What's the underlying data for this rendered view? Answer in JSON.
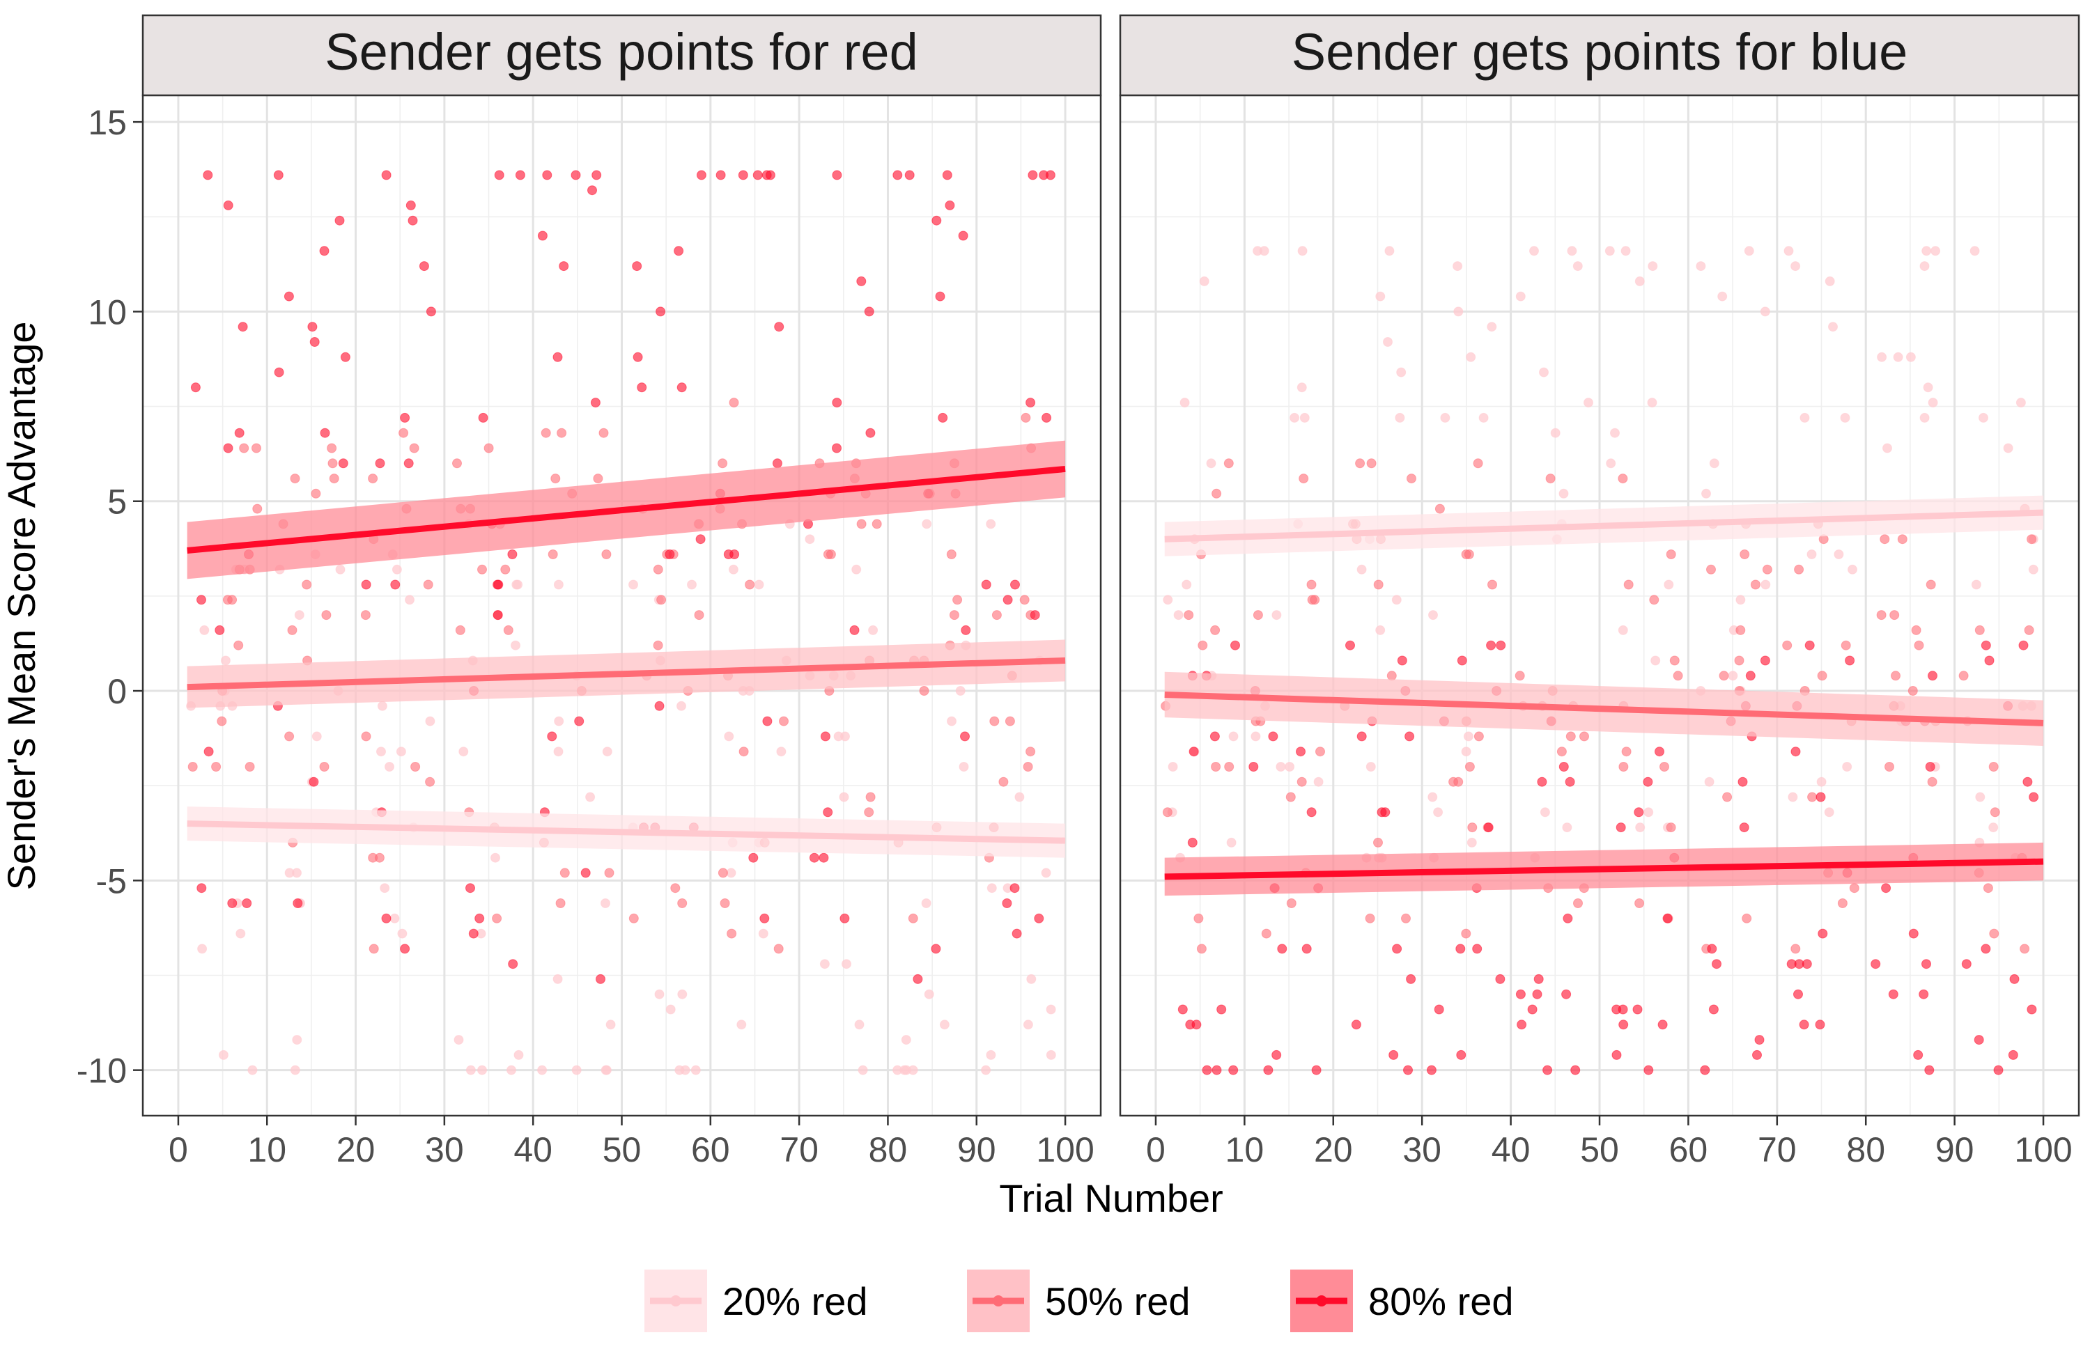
{
  "chart_data": {
    "type": "scatter",
    "xlabel": "Trial Number",
    "ylabel": "Sender's Mean Score Advantage",
    "x_ticks": [
      "0",
      "10",
      "20",
      "30",
      "40",
      "50",
      "60",
      "70",
      "80",
      "90",
      "100"
    ],
    "y_ticks": [
      "-10",
      "-5",
      "0",
      "5",
      "10",
      "15"
    ],
    "xlim": [
      -4,
      104
    ],
    "ylim": [
      -11.2,
      15.7
    ],
    "grid": true,
    "legend_position": "bottom",
    "legend": [
      {
        "label": "20% red",
        "color": "#FFC9CF",
        "band": "#FFE4E7"
      },
      {
        "label": "50% red",
        "color": "#FF6B75",
        "band": "#FFC1C6"
      },
      {
        "label": "80% red",
        "color": "#FF0A2A",
        "band": "#FF8C97"
      }
    ],
    "facets": [
      {
        "title": "Sender gets points for red",
        "series": [
          {
            "name": "20% red",
            "fit": {
              "x": [
                1,
                100
              ],
              "y": [
                -3.5,
                -3.95
              ]
            },
            "ci": 0.45
          },
          {
            "name": "50% red",
            "fit": {
              "x": [
                1,
                100
              ],
              "y": [
                0.1,
                0.8
              ]
            },
            "ci": 0.55
          },
          {
            "name": "80% red",
            "fit": {
              "x": [
                1,
                100
              ],
              "y": [
                3.7,
                5.85
              ]
            },
            "ci": 0.75
          }
        ],
        "points": {
          "x_groups": [
            5,
            15,
            25,
            35,
            45,
            55,
            65,
            75,
            85,
            95
          ],
          "ranges": {
            "20% red": [
              -10,
              6
            ],
            "50% red": [
              -8,
              8
            ],
            "80% red": [
              -10,
              13.4
            ]
          }
        }
      },
      {
        "title": "Sender gets points for blue",
        "series": [
          {
            "name": "20% red",
            "fit": {
              "x": [
                1,
                100
              ],
              "y": [
                4.0,
                4.7
              ]
            },
            "ci": 0.45
          },
          {
            "name": "50% red",
            "fit": {
              "x": [
                1,
                100
              ],
              "y": [
                -0.1,
                -0.85
              ]
            },
            "ci": 0.6
          },
          {
            "name": "80% red",
            "fit": {
              "x": [
                1,
                100
              ],
              "y": [
                -4.9,
                -4.5
              ]
            },
            "ci": 0.5
          }
        ],
        "points": {
          "x_groups": [
            5,
            15,
            25,
            35,
            45,
            55,
            65,
            75,
            85,
            95
          ],
          "ranges": {
            "20% red": [
              -6,
              11.4
            ],
            "50% red": [
              -8,
              6.2
            ],
            "80% red": [
              -10,
              2.5
            ]
          }
        }
      }
    ]
  }
}
